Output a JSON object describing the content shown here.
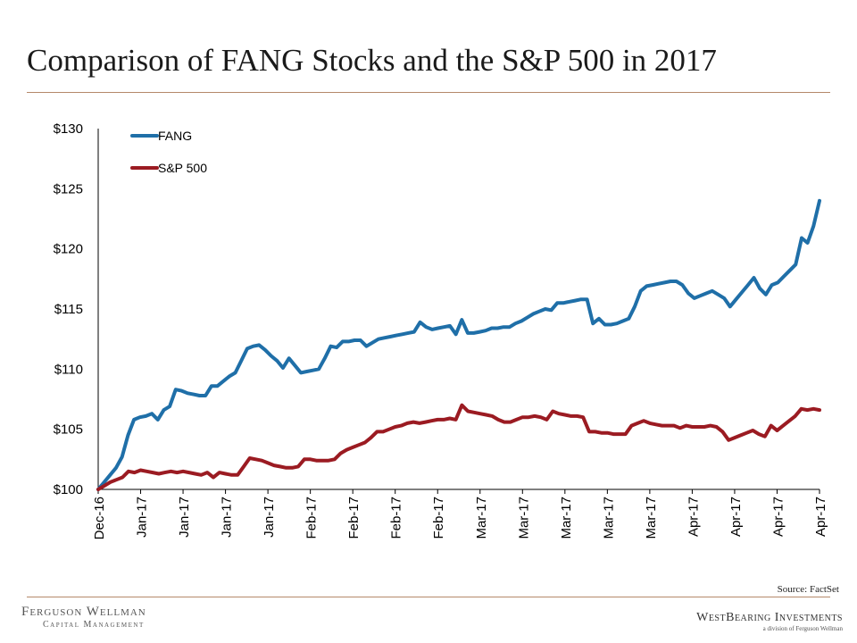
{
  "slide": {
    "title": "Comparison of FANG Stocks and the S&P 500 in 2017",
    "source": "Source: FactSet",
    "logo_left_main": "Ferguson Wellman",
    "logo_left_sub": "Capital Management",
    "logo_right_main": "WestBearing Investments",
    "logo_right_sub": "a division of Ferguson Wellman"
  },
  "colors": {
    "fang": "#1f6fa8",
    "sp500": "#9b1b22",
    "rule": "#b5896a",
    "axis": "#000000"
  },
  "chart_data": {
    "type": "line",
    "title": "",
    "xlabel": "",
    "ylabel": "",
    "ylim": [
      100,
      130
    ],
    "yticks": [
      100,
      105,
      110,
      115,
      120,
      125,
      130
    ],
    "ytick_labels": [
      "$100",
      "$105",
      "$110",
      "$115",
      "$120",
      "$125",
      "$130"
    ],
    "xtick_labels": [
      "Dec-16",
      "Jan-17",
      "Jan-17",
      "Jan-17",
      "Jan-17",
      "Feb-17",
      "Feb-17",
      "Feb-17",
      "Feb-17",
      "Mar-17",
      "Mar-17",
      "Mar-17",
      "Mar-17",
      "Mar-17",
      "Apr-17",
      "Apr-17",
      "Apr-17",
      "Apr-17"
    ],
    "grid": false,
    "legend": "top-left",
    "num_points": 84,
    "series": [
      {
        "name": "FANG",
        "color": "#1f6fa8",
        "values": [
          100,
          100.6,
          101.2,
          101.8,
          102.7,
          104.5,
          105.8,
          106.0,
          106.1,
          106.3,
          105.8,
          106.6,
          106.9,
          108.3,
          108.2,
          108.0,
          107.9,
          107.8,
          107.8,
          108.6,
          108.6,
          109.0,
          109.4,
          109.7,
          110.7,
          111.7,
          111.9,
          112.0,
          111.6,
          111.1,
          110.7,
          110.1,
          110.9,
          110.3,
          109.7,
          109.8,
          109.9,
          110.0,
          110.9,
          111.9,
          111.8,
          112.3,
          112.3,
          112.4,
          112.4,
          111.9,
          112.2,
          112.5,
          112.6,
          112.7,
          112.8,
          112.9,
          113.0,
          113.1,
          113.9,
          113.5,
          113.3,
          113.4,
          113.5,
          113.6,
          112.9,
          114.1,
          113.0,
          113.0,
          113.1,
          113.2,
          113.4,
          113.4,
          113.5,
          113.5,
          113.8,
          114.0,
          114.3,
          114.6,
          114.8,
          115.0,
          114.9,
          115.5,
          115.5,
          115.6,
          115.7,
          115.8,
          115.8,
          113.8,
          114.2,
          113.7,
          113.7,
          113.8,
          114.0,
          114.2,
          115.2,
          116.5,
          116.9,
          117.0,
          117.1,
          117.2,
          117.3,
          117.3,
          117.0,
          116.3,
          115.9,
          116.1,
          116.3,
          116.5,
          116.2,
          115.9,
          115.2,
          115.8,
          116.4,
          117.0,
          117.6,
          116.7,
          116.2,
          117.0,
          117.2,
          117.7,
          118.2,
          118.7,
          120.9,
          120.5,
          121.9,
          124.0
        ]
      },
      {
        "name": "S&P 500",
        "color": "#9b1b22",
        "values": [
          100,
          100.3,
          100.6,
          100.8,
          101.0,
          101.5,
          101.4,
          101.6,
          101.5,
          101.4,
          101.3,
          101.4,
          101.5,
          101.4,
          101.5,
          101.4,
          101.3,
          101.2,
          101.4,
          101.0,
          101.4,
          101.3,
          101.2,
          101.2,
          101.9,
          102.6,
          102.5,
          102.4,
          102.2,
          102.0,
          101.9,
          101.8,
          101.8,
          101.9,
          102.5,
          102.5,
          102.4,
          102.4,
          102.4,
          102.5,
          103.0,
          103.3,
          103.5,
          103.7,
          103.9,
          104.3,
          104.8,
          104.8,
          105.0,
          105.2,
          105.3,
          105.5,
          105.6,
          105.5,
          105.6,
          105.7,
          105.8,
          105.8,
          105.9,
          105.8,
          107.0,
          106.5,
          106.4,
          106.3,
          106.2,
          106.1,
          105.8,
          105.6,
          105.6,
          105.8,
          106.0,
          106.0,
          106.1,
          106.0,
          105.8,
          106.5,
          106.3,
          106.2,
          106.1,
          106.1,
          106.0,
          104.8,
          104.8,
          104.7,
          104.7,
          104.6,
          104.6,
          104.6,
          105.3,
          105.5,
          105.7,
          105.5,
          105.4,
          105.3,
          105.3,
          105.3,
          105.1,
          105.3,
          105.2,
          105.2,
          105.2,
          105.3,
          105.2,
          104.8,
          104.1,
          104.3,
          104.5,
          104.7,
          104.9,
          104.6,
          104.4,
          105.3,
          104.9,
          105.3,
          105.7,
          106.1,
          106.7,
          106.6,
          106.7,
          106.6
        ]
      }
    ]
  }
}
